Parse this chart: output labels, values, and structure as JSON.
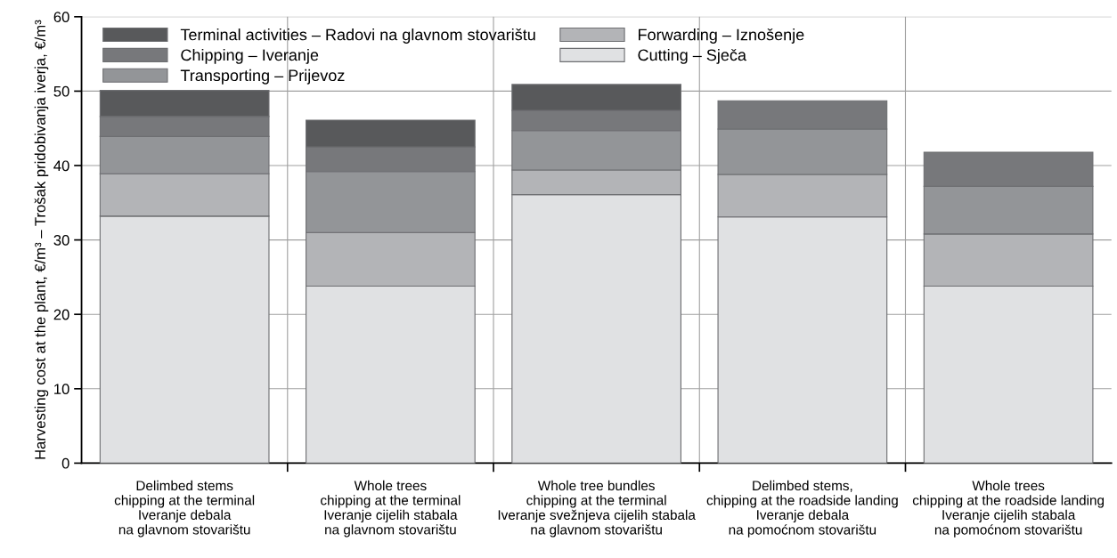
{
  "chart_data": {
    "type": "bar",
    "stacked": true,
    "ylabel": "Harvesting cost at the plant, €/m³ – Trošak pridobivanja iverja, €/m³",
    "categories": [
      "Delimbed stems\nchipping at the terminal\nIveranje debala\nna glavnom stovarištu",
      "Whole trees\nchipping at the terminal\nIveranje cijelih stabala\nna glavnom stovarištu",
      "Whole tree bundles\nchipping at the terminal\nIveranje svežnjeva cijelih stabala\nna glavnom stovarištu",
      "Delimbed stems,\nchipping at the roadside landing\nIveranje debala\nna pomoćnom stovarištu",
      "Whole trees\nchipping at the roadside landing\nIveranje cijelih stabala\nna pomoćnom stovarištu"
    ],
    "series": [
      {
        "name": "Cutting – Sječa",
        "color": "#e0e1e3",
        "values": [
          33.2,
          23.8,
          36.1,
          33.1,
          23.8
        ]
      },
      {
        "name": "Forwarding – Iznošenje",
        "color": "#b3b4b7",
        "values": [
          5.7,
          7.2,
          3.3,
          5.7,
          7.0
        ]
      },
      {
        "name": "Transporting – Prijevoz",
        "color": "#939598",
        "values": [
          5.0,
          8.2,
          5.3,
          6.1,
          6.4
        ]
      },
      {
        "name": "Chipping – Iveranje",
        "color": "#77787b",
        "values": [
          2.7,
          3.3,
          2.7,
          3.8,
          4.6
        ]
      },
      {
        "name": "Terminal activities – Radovi na glavnom stovarištu",
        "color": "#58595b",
        "values": [
          3.5,
          3.6,
          3.5,
          null,
          null
        ]
      }
    ],
    "ylim": [
      0,
      60
    ],
    "yticks": [
      0,
      10,
      20,
      30,
      40,
      50,
      60
    ],
    "grid": true,
    "legend": "top left"
  }
}
